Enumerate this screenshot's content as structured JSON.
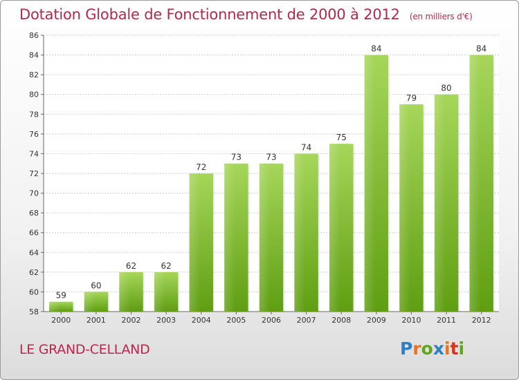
{
  "title": "Dotation Globale de Fonctionnement de 2000 à 2012",
  "subtitle": "(en milliers d'€)",
  "commune": "LE GRAND-CELLAND",
  "logo": {
    "letters": [
      "P",
      "r",
      "o",
      "x",
      "i",
      "t",
      "i"
    ]
  },
  "colors": {
    "bar_top": "#a6d65a",
    "bar_bottom": "#5f9e12",
    "title": "#b4284e"
  },
  "chart_data": {
    "type": "bar",
    "title": "Dotation Globale de Fonctionnement de 2000 à 2012",
    "subtitle": "(en milliers d'€)",
    "categories": [
      "2000",
      "2001",
      "2002",
      "2003",
      "2004",
      "2005",
      "2006",
      "2007",
      "2008",
      "2009",
      "2010",
      "2011",
      "2012"
    ],
    "values": [
      59,
      60,
      62,
      62,
      72,
      73,
      73,
      74,
      75,
      84,
      79,
      80,
      84
    ],
    "ylim": [
      58,
      86
    ],
    "yticks": [
      58,
      60,
      62,
      64,
      66,
      68,
      70,
      72,
      74,
      76,
      78,
      80,
      82,
      84,
      86
    ],
    "grid": true,
    "legend": "none"
  }
}
